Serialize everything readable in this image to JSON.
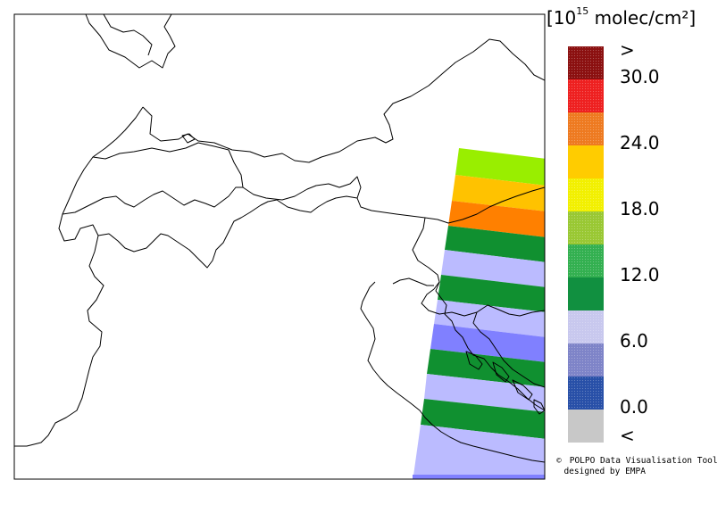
{
  "map": {
    "borders": "country-borders",
    "swath_colors": [
      "#99ee00",
      "#ffc200",
      "#ff8000",
      "#109030",
      "#bbbbff",
      "#8080ff"
    ]
  },
  "legend": {
    "unit_prefix": "[10",
    "unit_exp": "15",
    "unit_suffix": " molec/cm²]",
    "swatches": [
      {
        "color": "#8b1010",
        "pattern": "dots"
      },
      {
        "color": "#ee2020",
        "pattern": "dots"
      },
      {
        "color": "#ee7a20",
        "pattern": "dots"
      },
      {
        "color": "#ffcc00",
        "pattern": "solid"
      },
      {
        "color": "#f2f000",
        "pattern": "dots"
      },
      {
        "color": "#99c833",
        "pattern": "dots"
      },
      {
        "color": "#33b050",
        "pattern": "dots"
      },
      {
        "color": "#119040",
        "pattern": "solid"
      },
      {
        "color": "#c8c8ee",
        "pattern": "dots"
      },
      {
        "color": "#7e84c8",
        "pattern": "dots"
      },
      {
        "color": "#2850a8",
        "pattern": "dots"
      },
      {
        "color": "#c8c8c8",
        "pattern": "solid"
      }
    ],
    "labels": [
      ">",
      "30.0",
      "24.0",
      "18.0",
      "12.0",
      "6.0",
      "0.0",
      "<"
    ]
  },
  "credit": {
    "symbol": "©",
    "line1": "POLPO Data Visualisation Tool",
    "line2": "designed by EMPA"
  }
}
